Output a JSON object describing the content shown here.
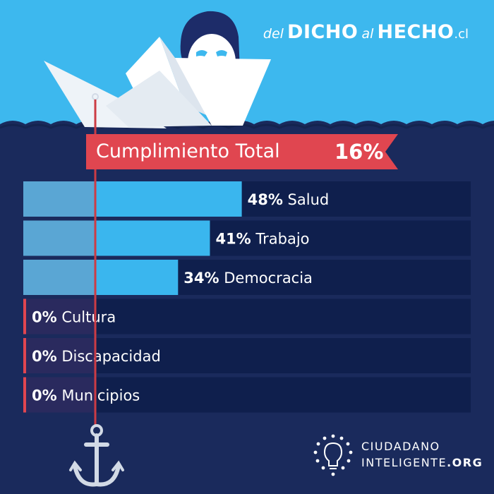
{
  "brand": {
    "part1": "del",
    "part2": "DICHO",
    "part3": "al",
    "part4": "HECHO",
    "part5": ".cl"
  },
  "summary": {
    "label": "Cumplimiento Total",
    "value": "16%"
  },
  "chart_data": {
    "type": "bar",
    "orientation": "horizontal",
    "categories": [
      "Salud",
      "Trabajo",
      "Democracia",
      "Cultura",
      "Discapacidad",
      "Municipios"
    ],
    "values": [
      48,
      41,
      34,
      0,
      0,
      0
    ],
    "value_labels": [
      "48%",
      "41%",
      "34%",
      "0%",
      "0%",
      "0%"
    ],
    "xlim": [
      0,
      100
    ],
    "grid": false,
    "legend": "none"
  },
  "footer": {
    "org_line1": "CIUDADANO",
    "org_line2_main": "INTELIGENTE",
    "org_line2_suffix": ".ORG"
  },
  "colors": {
    "sky": "#3db8ee",
    "sea": "#1a2a5c",
    "sea_wave": "#14244f",
    "row_bg": "#0f1f4d",
    "bar": "#3ab6ee",
    "bar_overlap": "#5aa6d4",
    "banner_red": "#e04650",
    "line_red": "#cc3c45",
    "boat": "#ffffff",
    "anchor": "#d2dae6"
  }
}
